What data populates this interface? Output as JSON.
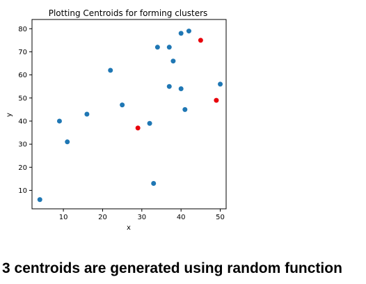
{
  "chart_data": {
    "type": "scatter",
    "title": "Plotting Centroids for forming clusters",
    "xlabel": "x",
    "ylabel": "y",
    "xlim": [
      2,
      51.5
    ],
    "ylim": [
      2,
      84
    ],
    "xticks": [
      10,
      20,
      30,
      40,
      50
    ],
    "yticks": [
      10,
      20,
      30,
      40,
      50,
      60,
      70,
      80
    ],
    "grid": false,
    "series": [
      {
        "color": "#1f77b4",
        "points": [
          {
            "x": 4,
            "y": 6
          },
          {
            "x": 9,
            "y": 40
          },
          {
            "x": 11,
            "y": 31
          },
          {
            "x": 16,
            "y": 43
          },
          {
            "x": 22,
            "y": 62
          },
          {
            "x": 25,
            "y": 47
          },
          {
            "x": 32,
            "y": 39
          },
          {
            "x": 33,
            "y": 13
          },
          {
            "x": 34,
            "y": 72
          },
          {
            "x": 37,
            "y": 72
          },
          {
            "x": 38,
            "y": 66
          },
          {
            "x": 37,
            "y": 55
          },
          {
            "x": 40,
            "y": 54
          },
          {
            "x": 40,
            "y": 78
          },
          {
            "x": 42,
            "y": 79
          },
          {
            "x": 41,
            "y": 45
          },
          {
            "x": 50,
            "y": 56
          }
        ]
      },
      {
        "color": "#e8000b",
        "points": [
          {
            "x": 29,
            "y": 37
          },
          {
            "x": 45,
            "y": 75
          },
          {
            "x": 49,
            "y": 49
          }
        ]
      }
    ]
  },
  "caption": "3 centroids are generated using random function"
}
